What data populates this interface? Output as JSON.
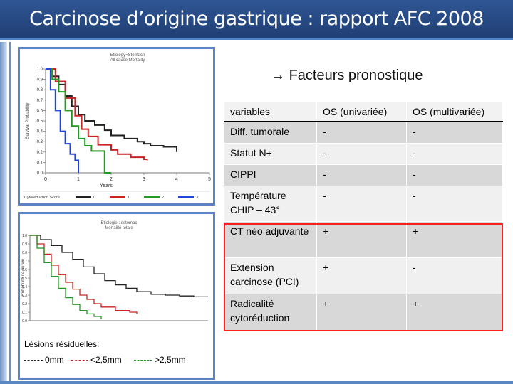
{
  "slide": {
    "title": "Carcinose d’origine gastrique : rapport AFC 2008",
    "subtitle": "Facteurs pronostique"
  },
  "chart1": {
    "header1": "Etiology=Stomach",
    "header2": "All cause Mortality",
    "ylabel": "Survival Probability",
    "xlabel": "Years",
    "yticks": [
      "1.0",
      "0.9",
      "0.8",
      "0.7",
      "0.6",
      "0.5",
      "0.4",
      "0.3",
      "0.2",
      "0.1",
      "0.0"
    ],
    "xticks": [
      "0",
      "1",
      "2",
      "3",
      "4",
      "5"
    ],
    "legend_title": "Cytoreduction Score",
    "legend_items": [
      "0",
      "1",
      "2",
      "3"
    ],
    "colors": [
      "#222222",
      "#cc2222",
      "#229922",
      "#2244dd"
    ]
  },
  "chart2": {
    "header1": "Etiologie : estomac",
    "header2": "Mortalité totale",
    "ylabel": "Probabilité de survie",
    "yticks": [
      "1.0",
      "0.9",
      "0.8",
      "0.7",
      "0.6",
      "0.5",
      "0.4",
      "0.3",
      "0.2",
      "0.1",
      "0.0"
    ],
    "colors": [
      "#222222",
      "#cc2222",
      "#229922"
    ]
  },
  "chart_data": [
    {
      "type": "line",
      "title": "Etiology=Stomach",
      "xlabel": "Years",
      "ylabel": "Survival Probability",
      "xlim": [
        0,
        5
      ],
      "ylim": [
        0,
        1
      ],
      "series": [
        {
          "name": "0",
          "x": [
            0,
            0.2,
            0.4,
            0.6,
            0.8,
            1.0,
            1.2,
            1.5,
            1.8,
            2.0,
            2.4,
            2.8,
            3.0,
            3.2,
            3.6,
            3.8,
            4.0
          ],
          "y": [
            1.0,
            0.93,
            0.85,
            0.74,
            0.64,
            0.56,
            0.5,
            0.46,
            0.41,
            0.36,
            0.33,
            0.3,
            0.28,
            0.26,
            0.25,
            0.25,
            0.2
          ]
        },
        {
          "name": "1",
          "x": [
            0,
            0.3,
            0.6,
            0.9,
            1.1,
            1.3,
            1.6,
            2.0,
            2.2,
            2.6,
            3.0,
            3.1
          ],
          "y": [
            1.0,
            0.88,
            0.72,
            0.55,
            0.42,
            0.35,
            0.27,
            0.22,
            0.18,
            0.15,
            0.13,
            0.12
          ]
        },
        {
          "name": "2",
          "x": [
            0,
            0.2,
            0.4,
            0.6,
            0.8,
            1.0,
            1.2,
            1.4,
            1.6,
            1.8,
            2.0
          ],
          "y": [
            1.0,
            0.9,
            0.78,
            0.6,
            0.45,
            0.33,
            0.26,
            0.21,
            0.21,
            0.0,
            0.0
          ]
        },
        {
          "name": "3",
          "x": [
            0,
            0.15,
            0.3,
            0.45,
            0.6,
            0.75,
            0.9,
            1.0
          ],
          "y": [
            1.0,
            0.8,
            0.6,
            0.4,
            0.28,
            0.18,
            0.12,
            0.0
          ]
        }
      ]
    },
    {
      "type": "line",
      "title": "Etiologie : estomac",
      "ylabel": "Probabilité de survie",
      "xlim": [
        0,
        5
      ],
      "ylim": [
        0,
        1
      ],
      "series": [
        {
          "name": "0mm",
          "x": [
            0,
            0.3,
            0.6,
            0.9,
            1.2,
            1.5,
            1.8,
            2.1,
            2.4,
            2.7,
            3.0,
            3.4,
            3.8,
            4.2,
            4.6,
            5.0
          ],
          "y": [
            1.0,
            0.95,
            0.88,
            0.8,
            0.72,
            0.63,
            0.55,
            0.47,
            0.42,
            0.38,
            0.34,
            0.31,
            0.3,
            0.29,
            0.28,
            0.28
          ]
        },
        {
          "name": "<2,5mm",
          "x": [
            0,
            0.2,
            0.4,
            0.6,
            0.8,
            1.0,
            1.2,
            1.4,
            1.6,
            1.8,
            2.0,
            2.4,
            2.8,
            3.0
          ],
          "y": [
            1.0,
            0.9,
            0.78,
            0.65,
            0.54,
            0.45,
            0.37,
            0.3,
            0.25,
            0.2,
            0.16,
            0.12,
            0.1,
            0.08
          ]
        },
        {
          "name": ">2,5mm",
          "x": [
            0,
            0.2,
            0.4,
            0.6,
            0.8,
            1.0,
            1.2,
            1.4,
            1.6,
            1.8,
            2.0
          ],
          "y": [
            1.0,
            0.85,
            0.68,
            0.52,
            0.38,
            0.27,
            0.19,
            0.12,
            0.08,
            0.05,
            0.02
          ]
        }
      ]
    }
  ],
  "residual_lesions": {
    "label": "Lésions résiduelles:",
    "items": [
      {
        "text": "0mm",
        "color": "#222222"
      },
      {
        "text": "<2,5mm",
        "color": "#cc2222"
      },
      {
        "text": ">2,5mm",
        "color": "#229922"
      }
    ]
  },
  "table": {
    "headers": [
      "variables",
      "OS (univariée)",
      "OS (multivariée)"
    ],
    "rows": [
      [
        "Diff. tumorale",
        "-",
        "-"
      ],
      [
        "Statut N+",
        "-",
        "-"
      ],
      [
        "CIPPI",
        "-",
        "-"
      ],
      [
        "Température CHIP – 43°",
        "-",
        "-"
      ],
      [
        "CT néo adjuvante",
        "+",
        "+"
      ],
      [
        "Extension carcinose (PCI)",
        "+",
        "-"
      ],
      [
        "Radicalité cytoréduction",
        "+",
        "+"
      ]
    ]
  }
}
